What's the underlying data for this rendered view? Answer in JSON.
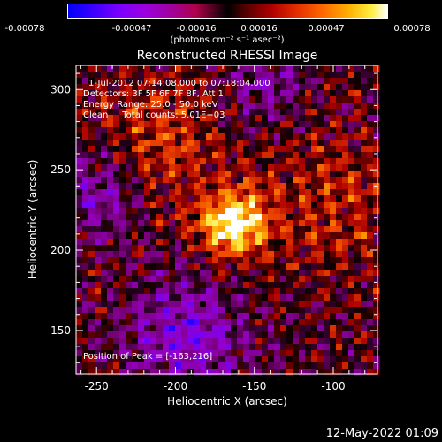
{
  "colorbar": {
    "ticks": [
      "-0.00078",
      "-0.00047",
      "-0.00016",
      "0.00016",
      "0.00047",
      "0.00078"
    ],
    "units": "(photons cm⁻² s⁻¹ asec⁻²)"
  },
  "annotations": {
    "line1": "1-Jul-2012 07:14:08.000 to 07:18:04.000",
    "line2": "Detectors: 3F 5F 6F 7F 8F, Att 1",
    "line3": "Energy Range: 25.0 - 50.0 keV",
    "line4": "Clean     Total counts: 5.01E+03",
    "peak": "Position of Peak = [-163,216]"
  },
  "timestamp": "12-May-2022 01:09",
  "chart_data": {
    "type": "heatmap",
    "title": "Reconstructed RHESSI Image",
    "xlabel": "Heliocentric X (arcsec)",
    "ylabel": "Heliocentric Y (arcsec)",
    "xlim": [
      -263,
      -72
    ],
    "ylim": [
      123,
      315
    ],
    "xticks": [
      -250,
      -200,
      -150,
      -100
    ],
    "yticks": [
      150,
      200,
      250,
      300
    ],
    "peak": {
      "x": -163,
      "y": 216
    },
    "color_range": [
      -0.00078,
      0.00078
    ],
    "colormap": [
      "#0000ff",
      "#7a00ff",
      "#a000a0",
      "#000000",
      "#b00000",
      "#ff6a00",
      "#ffee40",
      "#ffffff"
    ]
  }
}
